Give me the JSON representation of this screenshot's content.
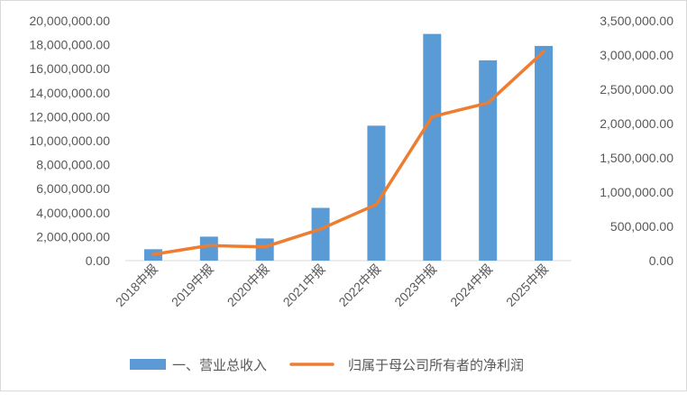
{
  "chart_data": {
    "type": "bar+line",
    "categories": [
      "2018中报",
      "2019中报",
      "2020中报",
      "2021中报",
      "2022中报",
      "2023中报",
      "2024中报",
      "2025中报"
    ],
    "series": [
      {
        "name": "一、营业总收入",
        "type": "bar",
        "axis": "left",
        "color": "#5b9bd5",
        "values": [
          950000,
          2000000,
          1850000,
          4400000,
          11250000,
          18900000,
          16700000,
          17900000
        ]
      },
      {
        "name": "归属于母公司所有者的净利润",
        "type": "line",
        "axis": "right",
        "color": "#ed7d31",
        "values": [
          90000,
          220000,
          200000,
          460000,
          820000,
          2100000,
          2300000,
          3050000
        ]
      }
    ],
    "y_left": {
      "min": 0,
      "max": 20000000,
      "step": 2000000,
      "ticks": [
        "0.00",
        "2,000,000.00",
        "4,000,000.00",
        "6,000,000.00",
        "8,000,000.00",
        "10,000,000.00",
        "12,000,000.00",
        "14,000,000.00",
        "16,000,000.00",
        "18,000,000.00",
        "20,000,000.00"
      ]
    },
    "y_right": {
      "min": 0,
      "max": 3500000,
      "step": 500000,
      "ticks": [
        "0.00",
        "500,000.00",
        "1,000,000.00",
        "1,500,000.00",
        "2,000,000.00",
        "2,500,000.00",
        "3,000,000.00",
        "3,500,000.00"
      ]
    },
    "grid": false,
    "legend_position": "bottom"
  }
}
